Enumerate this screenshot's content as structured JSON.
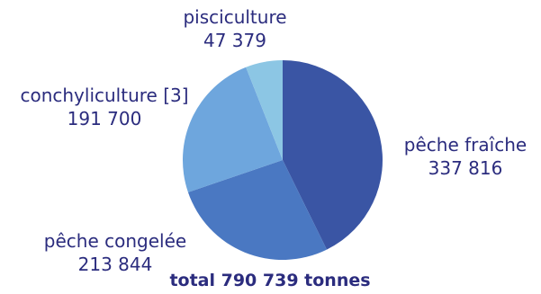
{
  "chart_data": {
    "type": "pie",
    "slices": [
      {
        "label": "pêche fraîche",
        "value": 337816,
        "value_text": "337 816",
        "color": "#3a55a4"
      },
      {
        "label": "pêche congelée",
        "value": 213844,
        "value_text": "213 844",
        "color": "#4a78c2"
      },
      {
        "label": "conchyliculture [3]",
        "value": 191700,
        "value_text": "191 700",
        "color": "#6ea6dd"
      },
      {
        "label": "pisciculture",
        "value": 47379,
        "value_text": "47 379",
        "color": "#8cc6e4"
      }
    ],
    "total_label": "total 790 739 tonnes",
    "start_angle_deg": 0,
    "direction": "clockwise"
  }
}
